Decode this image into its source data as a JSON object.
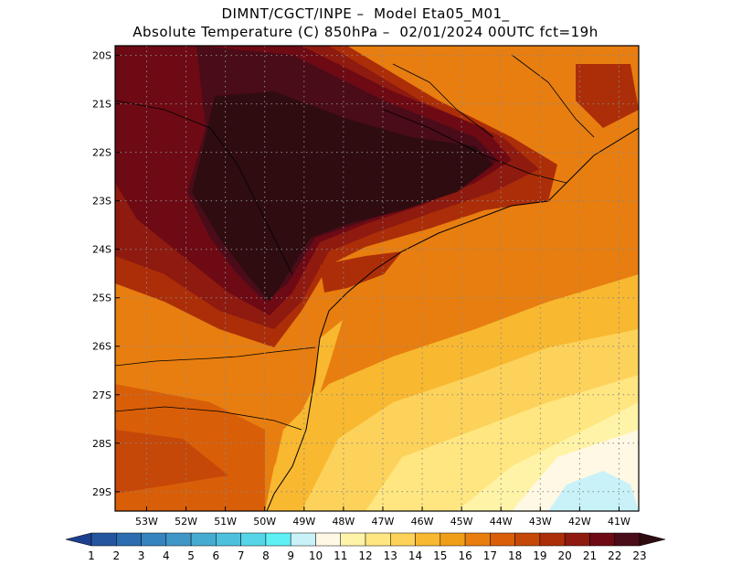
{
  "title": {
    "line1": "DIMNT/CGCT/INPE –  Model Eta05_M01_",
    "line2": "Absolute Temperature (C) 850hPa –  02/01/2024 00UTC fct=19h"
  },
  "map": {
    "lon_range": [
      -53.8,
      -40.5
    ],
    "lat_range": [
      -29.4,
      -19.8
    ],
    "lon_ticks": [
      "53W",
      "52W",
      "51W",
      "50W",
      "49W",
      "48W",
      "47W",
      "46W",
      "45W",
      "44W",
      "43W",
      "42W",
      "41W"
    ],
    "lon_values": [
      -53,
      -52,
      -51,
      -50,
      -49,
      -48,
      -47,
      -46,
      -45,
      -44,
      -43,
      -42,
      -41
    ],
    "lat_ticks": [
      "20S",
      "21S",
      "22S",
      "23S",
      "24S",
      "25S",
      "26S",
      "27S",
      "28S",
      "29S"
    ],
    "lat_values": [
      -20,
      -21,
      -22,
      -23,
      -24,
      -25,
      -26,
      -27,
      -28,
      -29
    ],
    "grid": "dotted"
  },
  "colorbar": {
    "labels": [
      "1",
      "2",
      "3",
      "4",
      "5",
      "6",
      "7",
      "8",
      "9",
      "10",
      "11",
      "12",
      "13",
      "14",
      "15",
      "16",
      "17",
      "18",
      "19",
      "20",
      "21",
      "22",
      "23"
    ],
    "colors": [
      "#1d3f8f",
      "#25559f",
      "#2c6cb0",
      "#3584bf",
      "#3f97c8",
      "#46abd1",
      "#4dc1dc",
      "#55d6e8",
      "#5ef0f5",
      "#c8f2f8",
      "#fff8e4",
      "#fff3a8",
      "#ffe680",
      "#fdd25a",
      "#f8b830",
      "#f09e18",
      "#e87e10",
      "#d95e08",
      "#c54808",
      "#ac2e08",
      "#8e1a10",
      "#6e0a14",
      "#4a0c18",
      "#2f0c10"
    ]
  }
}
